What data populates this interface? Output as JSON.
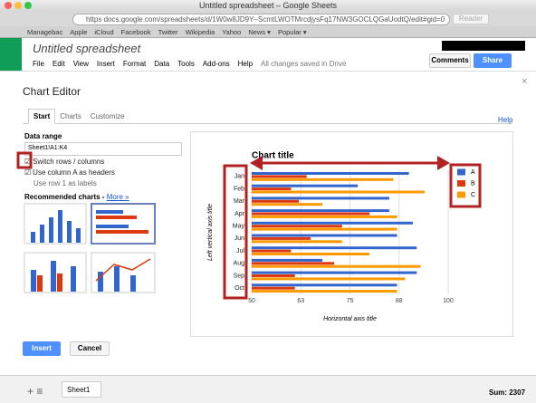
{
  "window": {
    "title": "Untitled spreadsheet – Google Sheets",
    "url": "https docs.google.com/spreadsheets/d/1W0w8JD9Y–ScmtLWOTMrcdjysFq17NW3GOCLQGaUodtQ/edit#gid=0",
    "reader": "Reader"
  },
  "bookmarks": [
    "Managebac",
    "Apple",
    "iCloud",
    "Facebook",
    "Twitter",
    "Wikipedia",
    "Yahoo",
    "News ▾",
    "Popular ▾"
  ],
  "doc": {
    "title": "Untitled spreadsheet",
    "menus": [
      "File",
      "Edit",
      "View",
      "Insert",
      "Format",
      "Data",
      "Tools",
      "Add-ons",
      "Help"
    ],
    "status": "All changes saved in Drive",
    "comments": "Comments",
    "share": "Share"
  },
  "dialog": {
    "title": "Chart Editor",
    "tabs": [
      "Start",
      "Charts",
      "Customize"
    ],
    "help": "Help",
    "data_range_label": "Data range",
    "data_range": "Sheet1!A1:K4",
    "options": [
      "Switch rows / columns",
      "Use column A as headers",
      "Use row 1 as labels"
    ],
    "recommended": "Recommended charts -",
    "more": "More »",
    "insert": "Insert",
    "cancel": "Cancel"
  },
  "footer": {
    "sheet": "Sheet1",
    "sum": "Sum: 2307"
  },
  "chart_data": {
    "type": "bar",
    "orientation": "horizontal",
    "title": "Chart title",
    "y_label": "Left vertical axis title",
    "x_label": "Horizontal axis title",
    "categories": [
      "Jan",
      "Feb",
      "Mar",
      "Apr",
      "May",
      "Jun",
      "Jul",
      "Aug",
      "Sep",
      "Oct"
    ],
    "series": [
      {
        "name": "A",
        "color": "#3366cc",
        "values": [
          90,
          77,
          85,
          85,
          91,
          87,
          92,
          68,
          92,
          87
        ]
      },
      {
        "name": "B",
        "color": "#dc3912",
        "values": [
          64,
          60,
          62,
          80,
          73,
          65,
          60,
          71,
          61,
          61
        ]
      },
      {
        "name": "C",
        "color": "#ff9900",
        "values": [
          86,
          94,
          68,
          87,
          87,
          73,
          80,
          93,
          89,
          87
        ]
      }
    ],
    "xlim": [
      50,
      100
    ],
    "xticks": [
      50,
      {
        "value": 62.5,
        "label": "63"
      },
      75,
      {
        "value": 87.5,
        "label": "88"
      },
      100
    ],
    "grid": true,
    "legend": "right"
  }
}
